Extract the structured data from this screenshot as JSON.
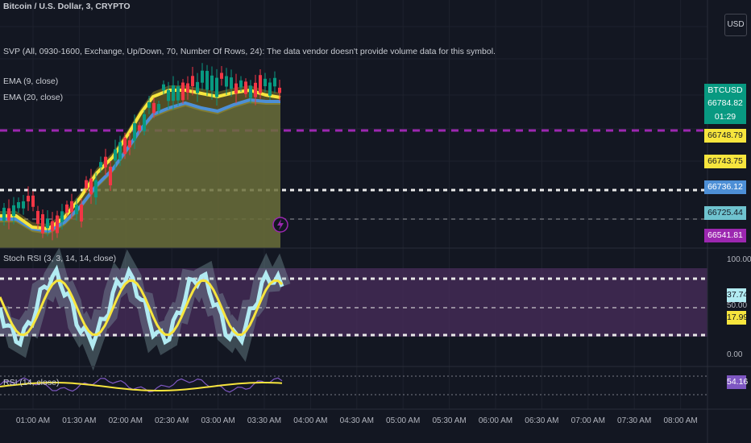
{
  "header": {
    "title": "Bitcoin / U.S. Dollar, 3, CRYPTO",
    "currency_button": "USD"
  },
  "indicators": {
    "svp": "SVP (All, 0930-1600, Exchange, Up/Down, 70, Number Of Rows, 24): The data vendor doesn't provide volume data for this symbol.",
    "ema9": "EMA (9, close)",
    "ema20": "EMA (20, close)",
    "stoch": "Stoch RSI (3, 3, 14, 14, close)",
    "rsi": "RSI (14, close)"
  },
  "price_tags": [
    {
      "text": "BTCUSD",
      "color": "#089981",
      "fg": "#ffffff"
    },
    {
      "text": "66784.82",
      "color": "#089981",
      "fg": "#ffffff"
    },
    {
      "text": "01:29",
      "color": "#089981",
      "fg": "#ffffff"
    },
    {
      "text": "66748.79",
      "color": "#f7e53d",
      "fg": "#131722"
    },
    {
      "text": "66743.75",
      "color": "#f7e53d",
      "fg": "#131722"
    },
    {
      "text": "66736.12",
      "color": "#4d8fd6",
      "fg": "#ffffff"
    },
    {
      "text": "66725.44",
      "color": "#6fc3cf",
      "fg": "#131722"
    },
    {
      "text": "66541.81",
      "color": "#9c27b0",
      "fg": "#ffffff"
    }
  ],
  "stoch_axis": [
    "100.00",
    "50.00",
    "0.00"
  ],
  "stoch_tags": [
    {
      "text": "37.74",
      "color": "#b2ebf2",
      "fg": "#131722"
    },
    {
      "text": "17.99",
      "color": "#f7e53d",
      "fg": "#131722"
    }
  ],
  "rsi_tag": {
    "text": "54.16",
    "color": "#7e57c2",
    "fg": "#ffffff"
  },
  "time_axis": [
    "01:00 AM",
    "01:30 AM",
    "02:00 AM",
    "02:30 AM",
    "03:00 AM",
    "03:30 AM",
    "04:00 AM",
    "04:30 AM",
    "05:00 AM",
    "05:30 AM",
    "06:00 AM",
    "06:30 AM",
    "07:00 AM",
    "07:30 AM",
    "08:00 AM"
  ],
  "colors": {
    "up": "#089981",
    "down": "#f23645",
    "ema9": "#f7e53d",
    "ema20": "#4d8fd6",
    "stoch_band": "#4a2d5c",
    "rsi_line": "#7e57c2",
    "dashed_purple": "#9c27b0"
  }
}
